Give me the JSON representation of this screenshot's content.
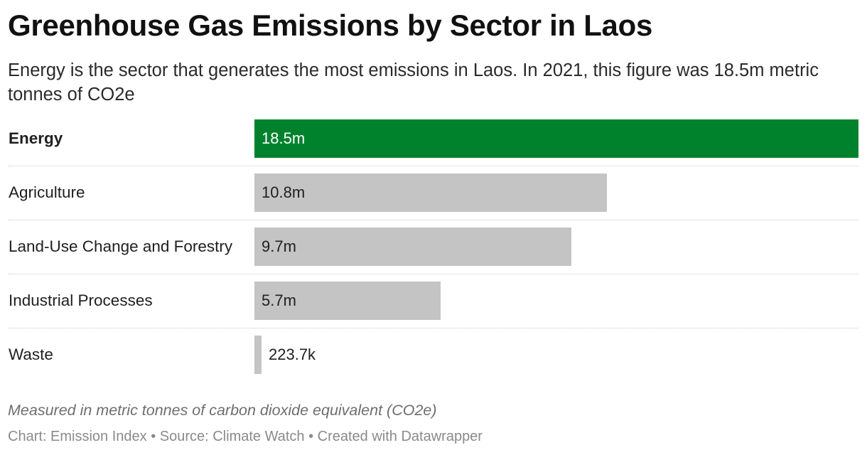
{
  "header": {
    "title": "Greenhouse Gas Emissions by Sector in Laos",
    "subtitle": "Energy is the sector that generates the most emissions in Laos. In 2021, this figure was 18.5m metric tonnes of CO2e"
  },
  "chart_data": {
    "type": "bar",
    "orientation": "horizontal",
    "categories": [
      "Energy",
      "Agriculture",
      "Land-Use Change and Forestry",
      "Industrial Processes",
      "Waste"
    ],
    "values": [
      18500000,
      10800000,
      9700000,
      5700000,
      223700
    ],
    "value_labels": [
      "18.5m",
      "10.8m",
      "9.7m",
      "5.7m",
      "223.7k"
    ],
    "highlight_index": 0,
    "colors": {
      "highlight": "#00822d",
      "default": "#c4c4c4",
      "highlight_text": "#ffffff",
      "default_text": "#1f1f1f"
    },
    "xlim": [
      0,
      18500000
    ],
    "grid": false,
    "legend": "none"
  },
  "notes": {
    "units_note": "Measured in metric tonnes of carbon dioxide equivalent (CO2e)",
    "footer": "Chart: Emission Index • Source: Climate Watch • Created with Datawrapper"
  }
}
